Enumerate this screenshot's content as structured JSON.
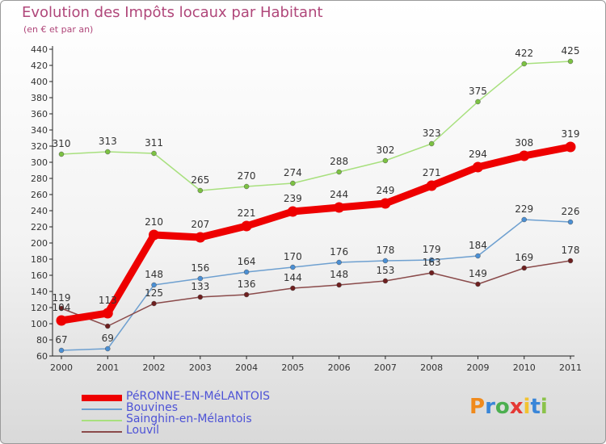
{
  "header": {
    "title": "Evolution des Impôts locaux par Habitant",
    "subtitle": "(en € et par an)"
  },
  "logo": {
    "text": "Proxiti",
    "letters": [
      "P",
      "r",
      "o",
      "x",
      "i",
      "t",
      "i"
    ],
    "colors": [
      "#f08a1c",
      "#3a86d8",
      "#4caf50",
      "#e53935",
      "#f2c230",
      "#3a86d8",
      "#8bc34a"
    ]
  },
  "chart_data": {
    "type": "line",
    "title": "Evolution des Impôts locaux par Habitant",
    "ylabel": "(en € et par an)",
    "xlabel": "",
    "categories": [
      "2000",
      "2001",
      "2002",
      "2003",
      "2004",
      "2005",
      "2006",
      "2007",
      "2008",
      "2009",
      "2010",
      "2011"
    ],
    "ylim": [
      60,
      440
    ],
    "ystep": 20,
    "grid": false,
    "legend": "bottom-left",
    "series": [
      {
        "name": "PéRONNE-EN-MéLANTOIS",
        "color": "#ee0000",
        "marker": "#ee0000",
        "emphasis": true,
        "values": [
          104,
          113,
          210,
          207,
          221,
          239,
          244,
          249,
          271,
          294,
          308,
          319
        ]
      },
      {
        "name": "Bouvines",
        "color": "#6ea0d0",
        "marker": "#4a8fd4",
        "values": [
          67,
          69,
          148,
          156,
          164,
          170,
          176,
          178,
          179,
          184,
          229,
          226
        ]
      },
      {
        "name": "Sainghin-en-Mélantois",
        "color": "#a8e07e",
        "marker": "#7cc242",
        "values": [
          310,
          313,
          311,
          265,
          270,
          274,
          288,
          302,
          323,
          375,
          422,
          425
        ]
      },
      {
        "name": "Louvil",
        "color": "#8a4a4a",
        "marker": "#6e1f1f",
        "values": [
          119,
          97,
          125,
          133,
          136,
          144,
          148,
          153,
          163,
          149,
          169,
          178
        ]
      }
    ],
    "data_labels": [
      [
        "104",
        "113",
        "210",
        "207",
        "221",
        "239",
        "244",
        "249",
        "271",
        "294",
        "308",
        "319"
      ],
      [
        "67",
        "69",
        "148",
        "156",
        "164",
        "170",
        "176",
        "178",
        "179",
        "184",
        "229",
        "226"
      ],
      [
        "310",
        "313",
        "311",
        "265",
        "270",
        "274",
        "288",
        "302",
        "323",
        "375",
        "422",
        "425"
      ],
      [
        "119",
        "",
        "125",
        "133",
        "136",
        "144",
        "148",
        "153",
        "163",
        "149",
        "169",
        "178"
      ]
    ]
  }
}
